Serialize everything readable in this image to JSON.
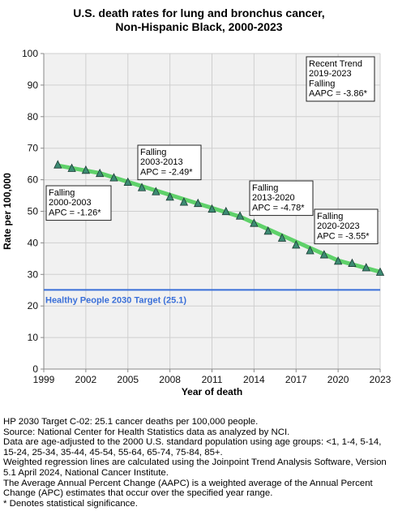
{
  "chart_data": {
    "type": "line",
    "title": "U.S. death rates for lung and bronchus cancer,",
    "subtitle": "Non-Hispanic Black,  2000-2023",
    "xlabel": "Year of death",
    "ylabel": "Rate per 100,000",
    "xlim": [
      1999,
      2023
    ],
    "ylim": [
      0,
      100
    ],
    "xticks": [
      1999,
      2002,
      2005,
      2008,
      2011,
      2014,
      2017,
      2020,
      2023
    ],
    "yticks": [
      0,
      10,
      20,
      30,
      40,
      50,
      60,
      70,
      80,
      90,
      100
    ],
    "grid": true,
    "series": [
      {
        "kind": "observed",
        "x": [
          2000,
          2001,
          2002,
          2003,
          2004,
          2005,
          2006,
          2007,
          2008,
          2009,
          2010,
          2011,
          2012,
          2013,
          2014,
          2015,
          2016,
          2017,
          2018,
          2019,
          2020,
          2021,
          2022,
          2023
        ],
        "y": [
          64.6,
          63.5,
          62.9,
          61.9,
          60.5,
          59.1,
          57.4,
          56.1,
          54.4,
          52.8,
          52.4,
          50.6,
          49.8,
          48.4,
          46.1,
          43.6,
          41.4,
          39.2,
          37.4,
          36.1,
          34.1,
          33.4,
          32.0,
          30.6
        ],
        "color": "#3d8b73"
      },
      {
        "kind": "joinpoint-fit",
        "x": [
          2000,
          2003,
          2013,
          2020,
          2023
        ],
        "y": [
          64.5,
          62.1,
          48.3,
          34.4,
          30.8
        ],
        "color": "#5fd16a"
      },
      {
        "kind": "target",
        "y": 25.1,
        "label": "Healthy People 2030 Target (25.1)",
        "color": "#3a6fd8"
      }
    ],
    "annotations": [
      {
        "lines": [
          "Falling",
          "2000-2003",
          "APC = -1.26*"
        ]
      },
      {
        "lines": [
          "Falling",
          "2003-2013",
          "APC = -2.49*"
        ]
      },
      {
        "lines": [
          "Falling",
          "2013-2020",
          "APC = -4.78*"
        ]
      },
      {
        "lines": [
          "Falling",
          "2020-2023",
          "APC = -3.55*"
        ]
      },
      {
        "lines": [
          "Recent Trend",
          "2019-2023",
          "Falling",
          "AAPC = -3.86*"
        ]
      }
    ]
  },
  "footer": [
    "HP 2030 Target C-02: 25.1 cancer deaths per 100,000 people.",
    "Source: National Center for Health Statistics data as analyzed by NCI.",
    "Data are age-adjusted to the 2000 U.S. standard population using age groups: <1, 1-4, 5-14, 15-24, 25-34, 35-44, 45-54, 55-64, 65-74, 75-84, 85+.",
    "Weighted regression lines are calculated using the Joinpoint Trend Analysis Software, Version 5.1 April 2024, National Cancer Institute.",
    "The Average Annual Percent Change (AAPC) is a weighted average of the Annual Percent Change (APC) estimates that occur over the specified year range.",
    "* Denotes statistical significance."
  ]
}
